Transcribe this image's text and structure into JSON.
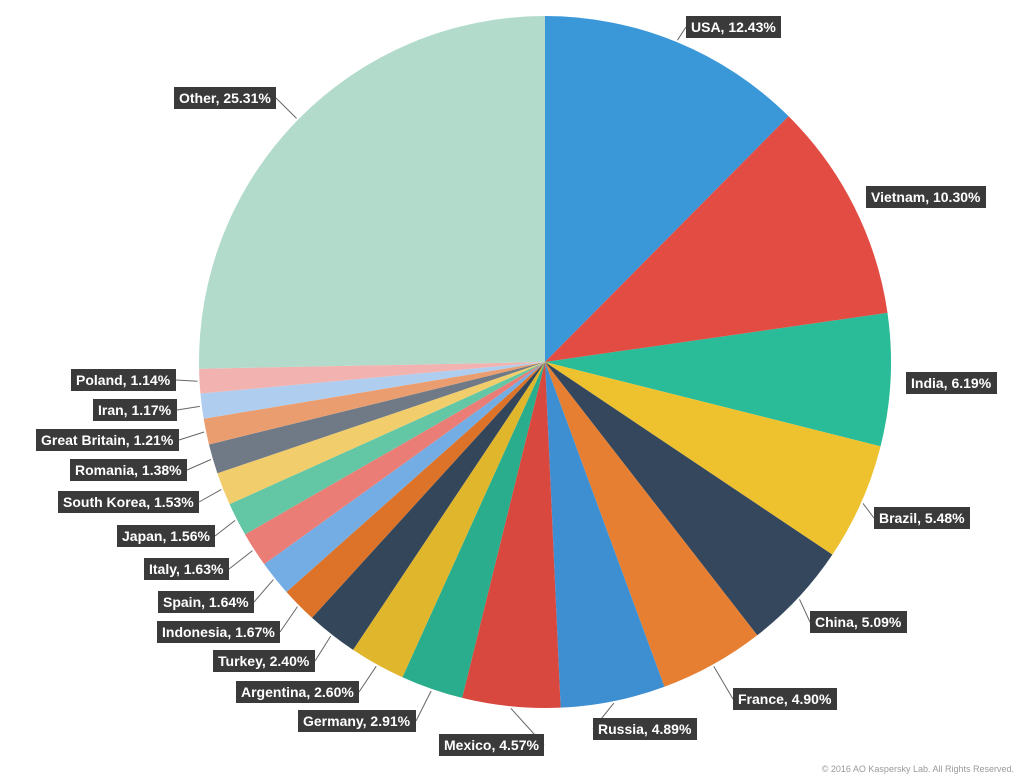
{
  "chart_data": {
    "type": "pie",
    "start": "12 o'clock",
    "direction": "clockwise",
    "slices": [
      {
        "name": "USA",
        "value": 12.43,
        "label": "USA, 12.43%",
        "color": "#3a97d8"
      },
      {
        "name": "Vietnam",
        "value": 10.3,
        "label": "Vietnam, 10.30%",
        "color": "#e34c42"
      },
      {
        "name": "India",
        "value": 6.19,
        "label": "India, 6.19%",
        "color": "#2abb98"
      },
      {
        "name": "Brazil",
        "value": 5.48,
        "label": "Brazil, 5.48%",
        "color": "#eec22f"
      },
      {
        "name": "China",
        "value": 5.09,
        "label": "China, 5.09%",
        "color": "#35475d"
      },
      {
        "name": "France",
        "value": 4.9,
        "label": "France, 4.90%",
        "color": "#e67f32"
      },
      {
        "name": "Russia",
        "value": 4.89,
        "label": "Russia, 4.89%",
        "color": "#3d8fd1"
      },
      {
        "name": "Mexico",
        "value": 4.57,
        "label": "Mexico, 4.57%",
        "color": "#d8483e"
      },
      {
        "name": "Germany",
        "value": 2.91,
        "label": "Germany, 2.91%",
        "color": "#2aad8c"
      },
      {
        "name": "Argentina",
        "value": 2.6,
        "label": "Argentina, 2.60%",
        "color": "#e0b62d"
      },
      {
        "name": "Turkey",
        "value": 2.4,
        "label": "Turkey, 2.40%",
        "color": "#34465a"
      },
      {
        "name": "Indonesia",
        "value": 1.67,
        "label": "Indonesia, 1.67%",
        "color": "#dd7328"
      },
      {
        "name": "Spain",
        "value": 1.64,
        "label": "Spain, 1.64%",
        "color": "#74ade3"
      },
      {
        "name": "Italy",
        "value": 1.63,
        "label": "Italy, 1.63%",
        "color": "#ea7d75"
      },
      {
        "name": "Japan",
        "value": 1.56,
        "label": "Japan, 1.56%",
        "color": "#63c7a5"
      },
      {
        "name": "South Korea",
        "value": 1.53,
        "label": "South Korea, 1.53%",
        "color": "#f2cd6b"
      },
      {
        "name": "Romania",
        "value": 1.38,
        "label": "Romania, 1.38%",
        "color": "#6f7a86"
      },
      {
        "name": "Great Britain",
        "value": 1.21,
        "label": "Great Britain, 1.21%",
        "color": "#ea9e70"
      },
      {
        "name": "Iran",
        "value": 1.17,
        "label": "Iran, 1.17%",
        "color": "#afcdee"
      },
      {
        "name": "Poland",
        "value": 1.14,
        "label": "Poland, 1.14%",
        "color": "#f2b3b0"
      },
      {
        "name": "Other",
        "value": 25.31,
        "label": "Other, 25.31%",
        "color": "#b2dbcc"
      }
    ]
  },
  "footer": {
    "copyright": "© 2016 AO Kaspersky Lab. All Rights Reserved."
  }
}
